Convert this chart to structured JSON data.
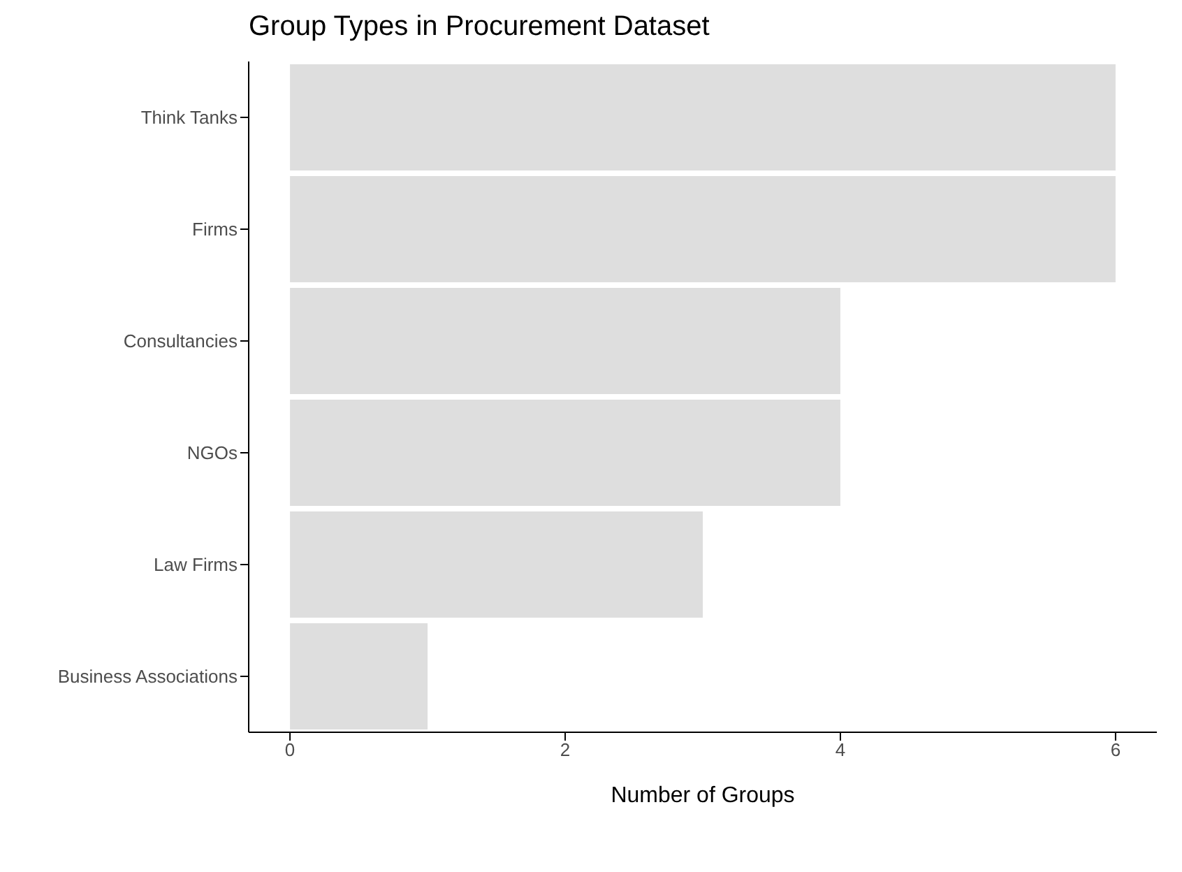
{
  "chart_data": {
    "type": "bar",
    "orientation": "horizontal",
    "title": "Group Types in Procurement Dataset",
    "xlabel": "Number of Groups",
    "categories": [
      "Think Tanks",
      "Firms",
      "Consultancies",
      "NGOs",
      "Law Firms",
      "Business Associations"
    ],
    "values": [
      6,
      6,
      4,
      4,
      3,
      1
    ],
    "color": "#dedede",
    "xlim": [
      -0.3,
      6.3
    ],
    "xticks": [
      0,
      2,
      4,
      6
    ],
    "grid": false,
    "legend": false
  }
}
